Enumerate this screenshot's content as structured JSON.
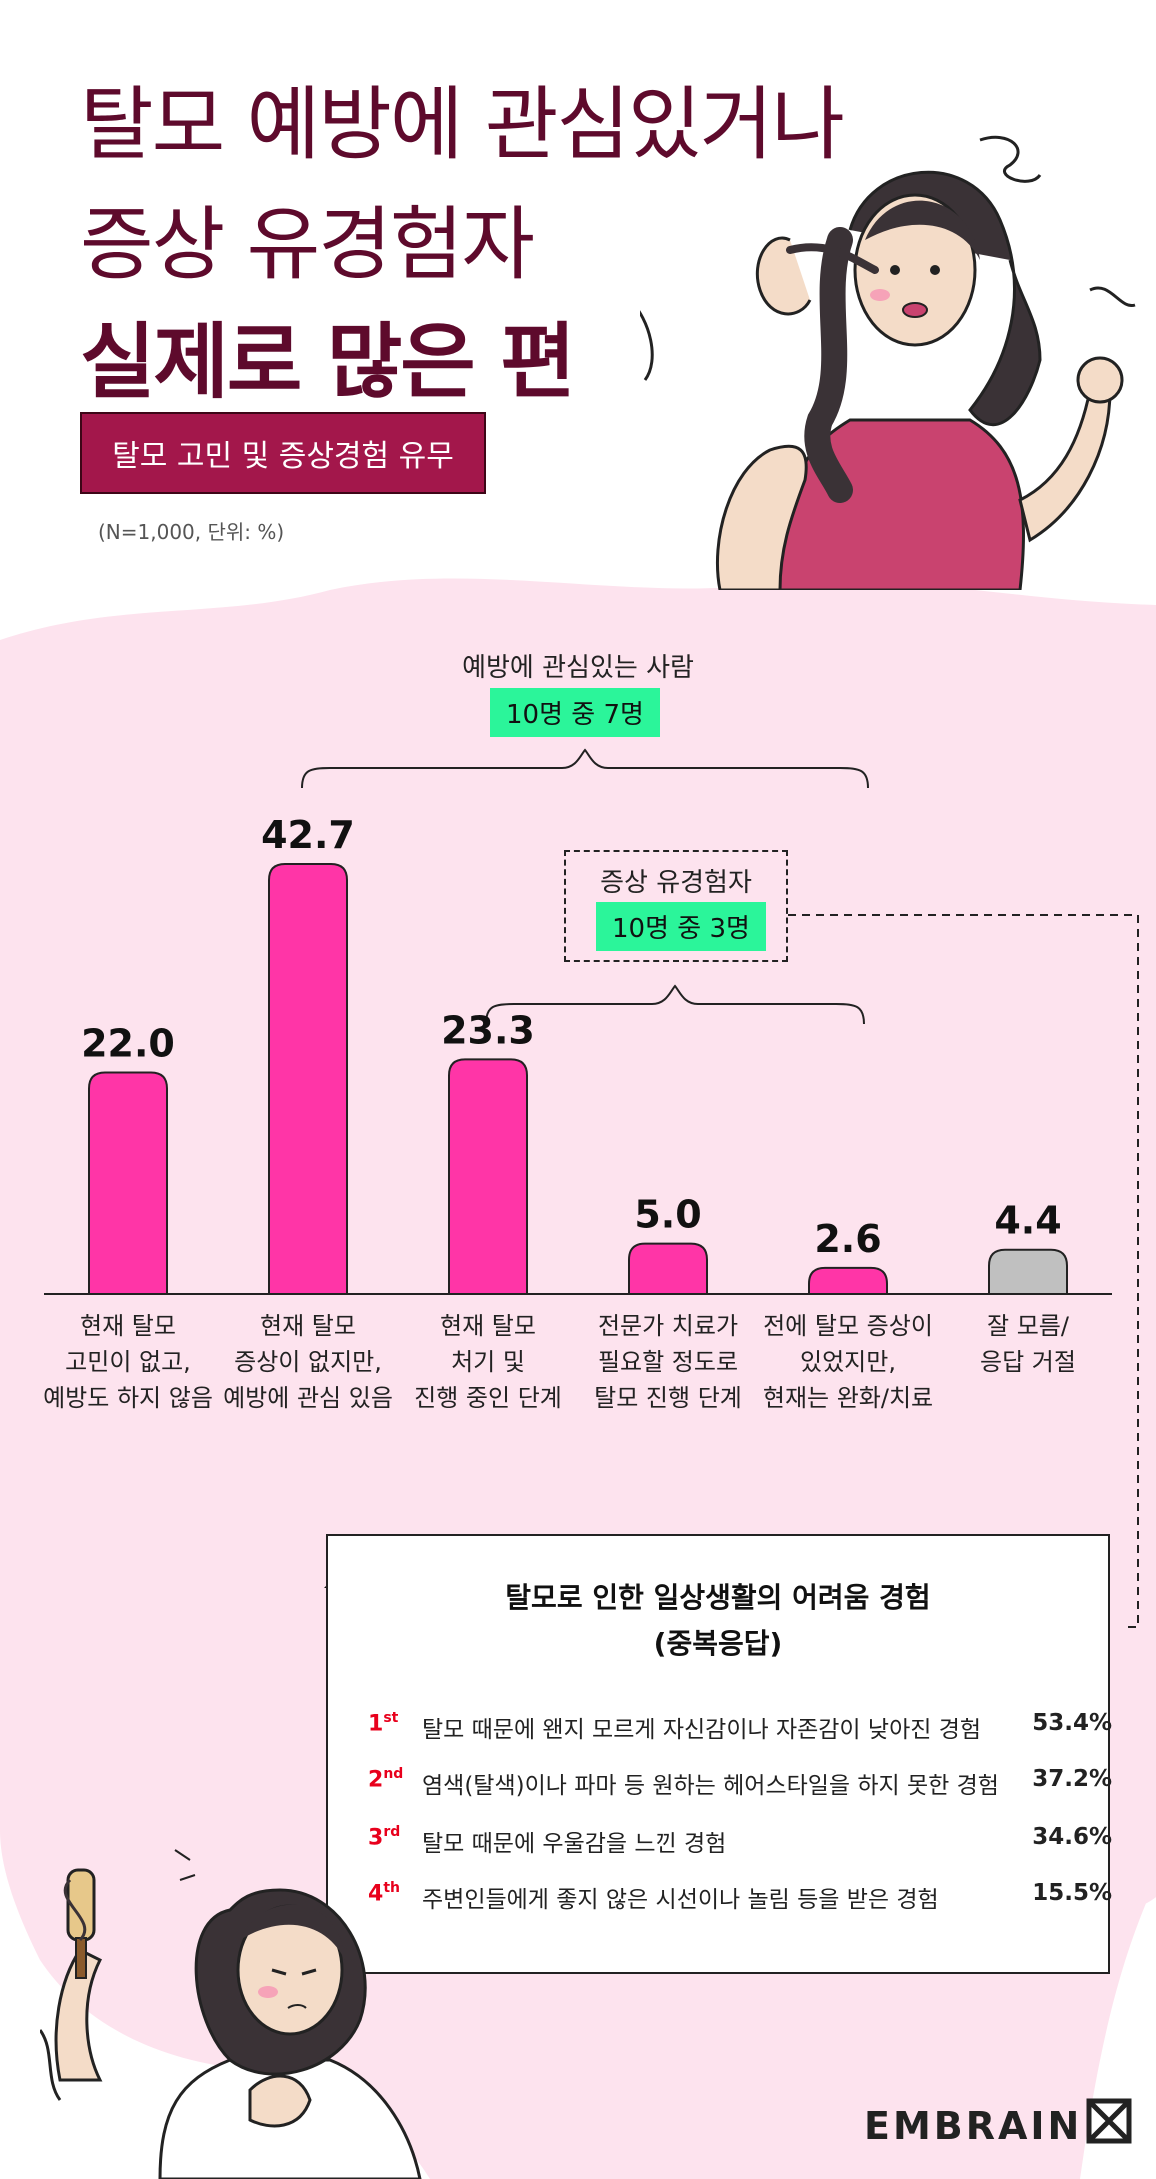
{
  "colors": {
    "background": "#f9cfe2",
    "panel": "#fde3ee",
    "title": "#5e0a2c",
    "subtitle_box": "#a3174b",
    "bar": "#ff35a7",
    "bar_other": "#c0c0c0",
    "badge": "#2bf59a",
    "rank_num": "#e8001c"
  },
  "header": {
    "title_line1": "탈모 예방에 관심있거나",
    "title_line2": "증상 유경험자",
    "title_line3": "실제로 많은 편",
    "subtitle": "탈모 고민 및 증상경험 유무",
    "note": "(N=1,000, 단위: %)"
  },
  "annotations": {
    "prevention_label": "예방에 관심있는 사람",
    "prevention_badge": "10명 중 7명",
    "symptom_label": "증상 유경험자",
    "symptom_badge": "10명 중 3명"
  },
  "chart_data": {
    "type": "bar",
    "categories": [
      "현재 탈모 고민이 없고, 예방도 하지 않음",
      "현재 탈모 증상이 없지만, 예방에 관심 있음",
      "현재 탈모 처기 및 진행 중인 단계",
      "전문가 치료가 필요할 정도로 탈모 진행 단계",
      "전에 탈모 증상이 있었지만, 현재는 완화/치료",
      "잘 모름/ 응답 거절"
    ],
    "category_lines": [
      [
        "현재 탈모",
        "고민이 없고,",
        "예방도 하지 않음"
      ],
      [
        "현재 탈모",
        "증상이 없지만,",
        "예방에 관심 있음"
      ],
      [
        "현재 탈모",
        "처기 및",
        "진행 중인 단계"
      ],
      [
        "전문가 치료가",
        "필요할 정도로",
        "탈모 진행 단계"
      ],
      [
        "전에 탈모 증상이",
        "있었지만,",
        "현재는 완화/치료"
      ],
      [
        "잘 모름/",
        "응답 거절"
      ]
    ],
    "values": [
      22.0,
      42.7,
      23.3,
      5.0,
      2.6,
      4.4
    ],
    "value_labels": [
      "22.0",
      "42.7",
      "23.3",
      "5.0",
      "2.6",
      "4.4"
    ],
    "ylim": [
      0,
      45
    ]
  },
  "ranking": {
    "title_line1": "탈모로 인한 일상생활의 어려움 경험",
    "title_line2": "(중복응답)",
    "items": [
      {
        "rank": "1",
        "suffix": "st",
        "text": "탈모 때문에 왠지 모르게 자신감이나 자존감이 낮아진 경험",
        "value": "53.4%"
      },
      {
        "rank": "2",
        "suffix": "nd",
        "text": "염색(탈색)이나 파마 등 원하는 헤어스타일을 하지 못한 경험",
        "value": "37.2%"
      },
      {
        "rank": "3",
        "suffix": "rd",
        "text": "탈모 때문에 우울감을 느낀 경험",
        "value": "34.6%"
      },
      {
        "rank": "4",
        "suffix": "th",
        "text": "주변인들에게 좋지 않은 시선이나 놀림 등을 받은 경험",
        "value": "15.5%"
      }
    ]
  },
  "footer": {
    "logo": "EMBRAIN"
  }
}
